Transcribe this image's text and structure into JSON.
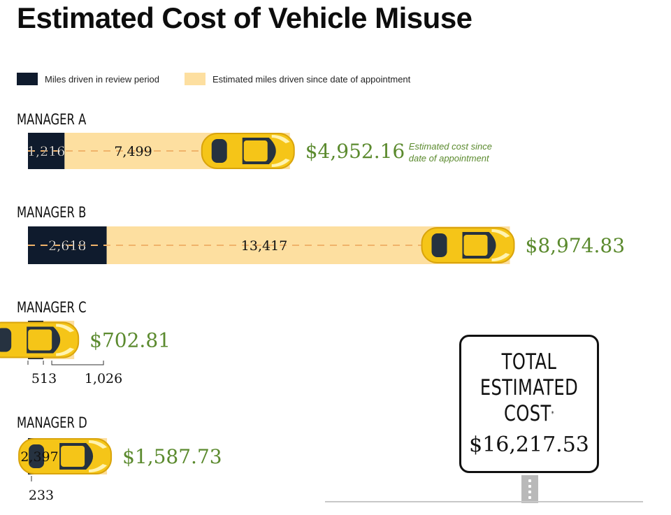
{
  "title": "Estimated Cost of Vehicle Misuse",
  "legend": {
    "review_label": "Miles driven in review period",
    "since_label": "Estimated miles driven since date of appointment"
  },
  "colors": {
    "review": "#0f1b2d",
    "since": "#fddfa0",
    "car": "#f5c518",
    "cost": "#5b8a2e",
    "dash": "#f0b36a"
  },
  "chart_data": {
    "type": "bar",
    "stacked": true,
    "categories": [
      "MANAGER A",
      "MANAGER B",
      "MANAGER C",
      "MANAGER D"
    ],
    "series": [
      {
        "name": "Miles driven in review period",
        "values": [
          1216,
          2618,
          513,
          233
        ]
      },
      {
        "name": "Estimated miles driven since date of appointment",
        "values": [
          7499,
          13417,
          1026,
          2397
        ]
      }
    ],
    "value_labels": {
      "review": [
        "1,216",
        "2,618",
        "513",
        "233"
      ],
      "since": [
        "7,499",
        "13,417",
        "1,026",
        "2,397"
      ]
    },
    "costs": [
      4952.16,
      8974.83,
      702.81,
      1587.73
    ],
    "cost_labels": [
      "$4,952.16",
      "$8,974.83",
      "$702.81",
      "$1,587.73"
    ],
    "cost_note": "Estimated cost since date of appointment",
    "total_label": "TOTAL ESTIMATED COST",
    "total": 16217.53,
    "total_text": "$16,217.53"
  }
}
